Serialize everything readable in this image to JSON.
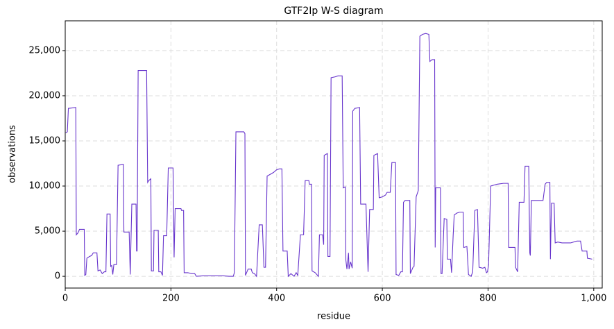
{
  "chart_data": {
    "type": "line",
    "title": "GTF2Ip W-S diagram",
    "xlabel": "residue",
    "ylabel": "observations",
    "color": "#6633cc",
    "grid": true,
    "xlim": [
      0,
      1016
    ],
    "ylim": [
      -1300,
      28300
    ],
    "xticks": [
      0,
      200,
      400,
      600,
      800,
      {
        "value": 1000,
        "label": "1,000"
      }
    ],
    "yticks": [
      0,
      {
        "value": 5000,
        "label": "5,000"
      },
      {
        "value": 10000,
        "label": "10,000"
      },
      {
        "value": 15000,
        "label": "15,000"
      },
      {
        "value": 20000,
        "label": "20,000"
      },
      {
        "value": 25000,
        "label": "25,000"
      }
    ],
    "x": [
      1,
      4,
      6,
      20,
      21,
      24,
      27,
      36,
      37,
      39,
      41,
      46,
      50,
      53,
      60,
      62,
      66,
      70,
      74,
      77,
      79,
      85,
      86,
      88,
      90,
      92,
      97,
      100,
      110,
      111,
      121,
      123,
      126,
      134,
      135,
      136,
      138,
      154,
      156,
      158,
      162,
      163,
      167,
      168,
      176,
      177,
      181,
      184,
      186,
      192,
      195,
      204,
      206,
      208,
      219,
      220,
      224,
      225,
      232,
      240,
      245,
      248,
      260,
      280,
      300,
      310,
      318,
      320,
      323,
      338,
      340,
      341,
      346,
      352,
      354,
      358,
      362,
      367,
      373,
      376,
      379,
      382,
      388,
      394,
      400,
      405,
      410,
      412,
      420,
      422,
      427,
      433,
      437,
      440,
      445,
      451,
      454,
      461,
      462,
      466,
      467,
      473,
      479,
      481,
      487,
      489,
      490,
      496,
      497,
      501,
      503,
      511,
      516,
      524,
      526,
      530,
      531,
      533,
      536,
      537,
      540,
      543,
      544,
      548,
      557,
      559,
      569,
      573,
      576,
      583,
      584,
      591,
      594,
      600,
      606,
      609,
      615,
      618,
      625,
      626,
      631,
      635,
      638,
      640,
      643,
      652,
      653,
      658,
      660,
      664,
      668,
      671,
      676,
      682,
      688,
      690,
      694,
      699,
      700,
      701,
      710,
      711,
      713,
      717,
      722,
      723,
      729,
      731,
      734,
      736,
      741,
      746,
      753,
      754,
      760,
      763,
      768,
      771,
      775,
      780,
      783,
      790,
      794,
      797,
      799,
      801,
      805,
      817,
      829,
      838,
      839,
      851,
      852,
      856,
      859,
      868,
      870,
      877,
      879,
      880,
      882,
      898,
      904,
      908,
      911,
      917,
      918,
      920,
      925,
      927,
      932,
      940,
      956,
      968,
      975,
      978,
      987,
      988,
      997
    ],
    "values": [
      15900,
      16000,
      18600,
      18700,
      4600,
      4800,
      5200,
      5200,
      100,
      200,
      2000,
      2200,
      2300,
      2600,
      2600,
      600,
      700,
      300,
      500,
      500,
      6900,
      6900,
      1100,
      1200,
      200,
      1300,
      1300,
      12300,
      12400,
      4900,
      4900,
      200,
      8000,
      8000,
      2800,
      2800,
      22800,
      22800,
      10400,
      10600,
      10800,
      600,
      600,
      5100,
      5100,
      500,
      500,
      100,
      4500,
      4500,
      12000,
      12000,
      2100,
      7500,
      7500,
      7300,
      7300,
      400,
      400,
      300,
      300,
      0,
      50,
      50,
      50,
      0,
      0,
      400,
      16000,
      16000,
      15800,
      100,
      800,
      800,
      400,
      300,
      0,
      5700,
      5700,
      1000,
      1000,
      11100,
      11300,
      11500,
      11800,
      11900,
      11900,
      2800,
      2800,
      0,
      300,
      0,
      400,
      100,
      4600,
      4600,
      10600,
      10600,
      10200,
      10200,
      600,
      400,
      0,
      4600,
      4600,
      3500,
      13400,
      13600,
      2200,
      2200,
      22000,
      22100,
      22200,
      22200,
      9800,
      9900,
      1800,
      800,
      2600,
      800,
      1600,
      900,
      18300,
      18600,
      18700,
      8000,
      8000,
      500,
      7400,
      7400,
      13400,
      13600,
      8700,
      8800,
      9000,
      9300,
      9300,
      12600,
      12600,
      200,
      100,
      500,
      500,
      8200,
      8400,
      8400,
      300,
      1000,
      1100,
      8800,
      9500,
      26600,
      26800,
      26900,
      26800,
      23800,
      24000,
      24000,
      3200,
      9800,
      9800,
      300,
      300,
      6400,
      6300,
      1900,
      1900,
      400,
      4500,
      6800,
      7000,
      7100,
      7100,
      3200,
      3300,
      200,
      0,
      500,
      7300,
      7400,
      1000,
      900,
      1000,
      400,
      500,
      1300,
      10000,
      10200,
      10300,
      10300,
      3200,
      3200,
      1000,
      500,
      8200,
      8200,
      12200,
      12200,
      2600,
      2300,
      8400,
      8400,
      8400,
      10200,
      10400,
      10400,
      1900,
      8100,
      8100,
      3700,
      3800,
      3700,
      3700,
      3900,
      3900,
      2800,
      2800,
      2000,
      1900
    ]
  }
}
